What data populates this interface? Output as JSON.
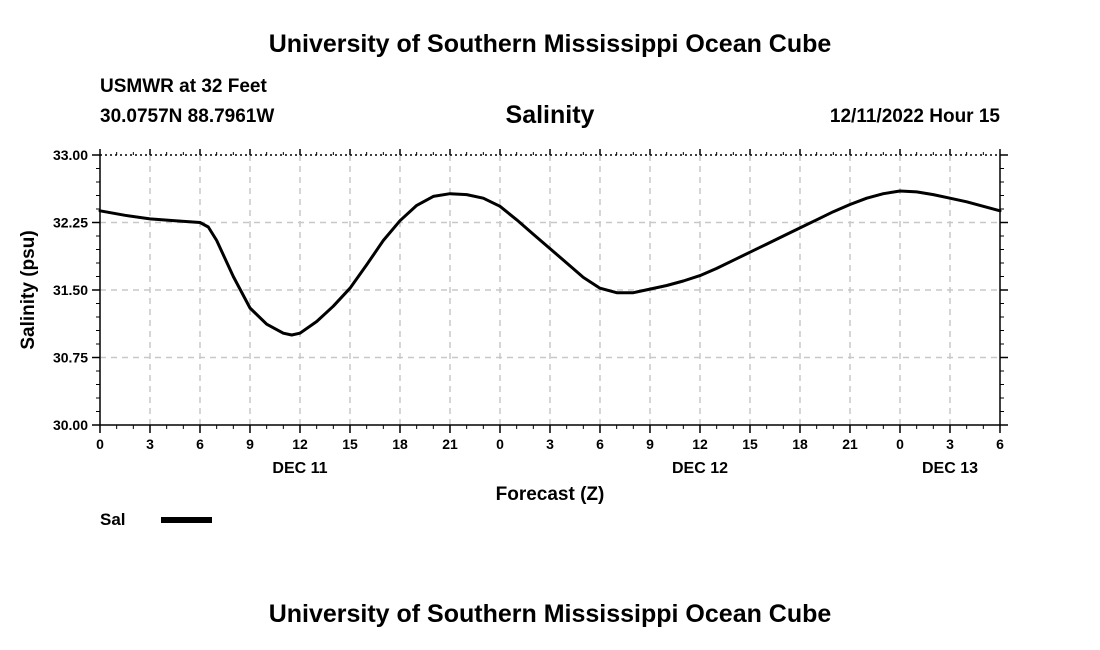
{
  "header": {
    "title": "University of Southern Mississippi Ocean Cube",
    "station": "USMWR at 32 Feet",
    "coords": "30.0757N  88.7961W",
    "valid_time": "12/11/2022 Hour 15"
  },
  "footer": {
    "title": "University of Southern Mississippi Ocean Cube"
  },
  "legend": {
    "label": "Sal"
  },
  "chart_data": {
    "type": "line",
    "title": "Salinity",
    "xlabel": "Forecast (Z)",
    "ylabel": "Salinity (psu)",
    "ylim": [
      30.0,
      33.0
    ],
    "yticks": [
      "30.00",
      "30.75",
      "31.50",
      "32.25",
      "33.00"
    ],
    "xlim": [
      0,
      54
    ],
    "xtick_labels": [
      "0",
      "3",
      "6",
      "9",
      "12",
      "15",
      "18",
      "21",
      "0",
      "3",
      "6",
      "9",
      "12",
      "15",
      "18",
      "21",
      "0",
      "3",
      "6"
    ],
    "date_labels": [
      {
        "hour": 12,
        "label": "DEC 11"
      },
      {
        "hour": 36,
        "label": "DEC 12"
      },
      {
        "hour": 51,
        "label": "DEC 13"
      }
    ],
    "grid": true,
    "series": [
      {
        "name": "Sal",
        "x": [
          0,
          1.5,
          3,
          4.5,
          6,
          6.5,
          7,
          8,
          9,
          10,
          11,
          11.5,
          12,
          13,
          14,
          15,
          16,
          17,
          18,
          19,
          20,
          21,
          22,
          23,
          24,
          25,
          26,
          27,
          28,
          29,
          30,
          31,
          32,
          33,
          34,
          35,
          36,
          37,
          38,
          39,
          40,
          41,
          42,
          43,
          44,
          45,
          46,
          47,
          48,
          49,
          50,
          51,
          52,
          53,
          54
        ],
        "y": [
          32.38,
          32.33,
          32.29,
          32.27,
          32.25,
          32.2,
          32.05,
          31.65,
          31.3,
          31.12,
          31.02,
          31.0,
          31.02,
          31.15,
          31.32,
          31.52,
          31.78,
          32.05,
          32.27,
          32.44,
          32.54,
          32.57,
          32.56,
          32.52,
          32.43,
          32.28,
          32.12,
          31.96,
          31.8,
          31.64,
          31.52,
          31.47,
          31.47,
          31.51,
          31.55,
          31.6,
          31.66,
          31.74,
          31.83,
          31.92,
          32.01,
          32.1,
          32.19,
          32.28,
          32.37,
          32.45,
          32.52,
          32.57,
          32.6,
          32.59,
          32.56,
          32.52,
          32.48,
          32.43,
          32.38
        ]
      }
    ]
  }
}
